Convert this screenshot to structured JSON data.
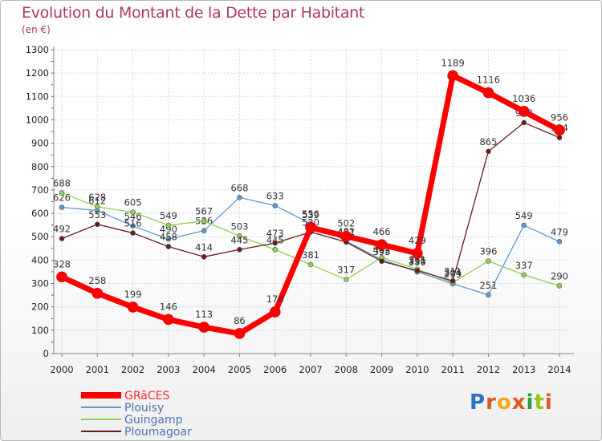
{
  "title": "Evolution du Montant de la Dette par Habitant",
  "unit": "(en €)",
  "logo": {
    "text": "Proxiti",
    "colors": [
      "#2a72c9",
      "#e05a1c",
      "#f0a81c",
      "#e05a1c",
      "#2a9a3c",
      "#9ac31c",
      "#e05a1c"
    ]
  },
  "chart_data": {
    "type": "line",
    "title": "Evolution du Montant de la Dette par Habitant",
    "ylabel": "(en €)",
    "xlabel": "",
    "x": [
      "2000",
      "2001",
      "2002",
      "2003",
      "2004",
      "2005",
      "2006",
      "2007",
      "2008",
      "2009",
      "2010",
      "2011",
      "2012",
      "2013",
      "2014"
    ],
    "ylim": [
      0,
      1300
    ],
    "yticks": [
      0,
      100,
      200,
      300,
      400,
      500,
      600,
      700,
      800,
      900,
      1000,
      1100,
      1200,
      1300
    ],
    "grid": true,
    "legend_position": "bottom-left",
    "series": [
      {
        "name": "Plouisy",
        "color": "#5b9bd5",
        "values": [
          626,
          612,
          546,
          490,
          526,
          668,
          633,
          556,
          481,
          402,
          350,
          299,
          251,
          549,
          479
        ],
        "labels": [
          "626",
          "612",
          "546",
          "490",
          "526",
          "668",
          "633",
          "556",
          "481",
          "402",
          "350",
          "299",
          "251",
          "549",
          "479"
        ]
      },
      {
        "name": "Guingamp",
        "color": "#8fd14f",
        "values": [
          688,
          628,
          605,
          549,
          567,
          503,
          445,
          381,
          317,
          411,
          361,
          304,
          396,
          337,
          290
        ],
        "labels": [
          "688",
          "628",
          "605",
          "549",
          "567",
          "503",
          "445",
          "381",
          "317",
          "411",
          "361",
          "304",
          "396",
          "337",
          "290"
        ]
      },
      {
        "name": "Ploumagoar",
        "color": "#6b1a1a",
        "values": [
          492,
          553,
          516,
          458,
          414,
          445,
          473,
          520,
          477,
          395,
          355,
          311,
          865,
          988,
          924
        ],
        "labels": [
          "492",
          "553",
          "516",
          "458",
          "414",
          "445",
          "473",
          "520",
          "477",
          "395",
          "355",
          "311",
          "865",
          "988",
          "924"
        ]
      },
      {
        "name": "GRâCES",
        "color": "#ff0000",
        "values": [
          328,
          258,
          199,
          146,
          113,
          86,
          178,
          539,
          502,
          466,
          429,
          1189,
          1116,
          1036,
          956
        ],
        "labels": [
          "328",
          "258",
          "199",
          "146",
          "113",
          "86",
          "178",
          "539",
          "502",
          "466",
          "429",
          "1189",
          "1116",
          "1036",
          "956"
        ]
      }
    ]
  }
}
